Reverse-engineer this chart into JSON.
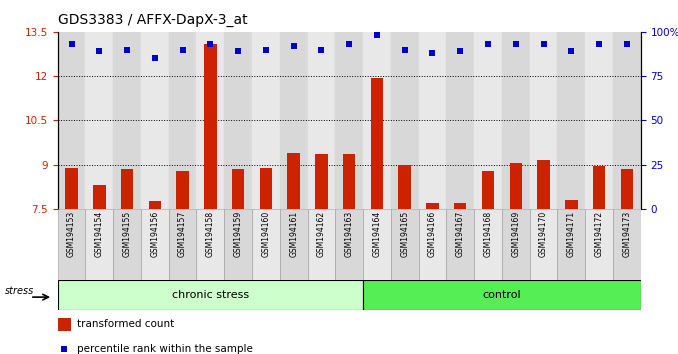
{
  "title": "GDS3383 / AFFX-DapX-3_at",
  "samples": [
    "GSM194153",
    "GSM194154",
    "GSM194155",
    "GSM194156",
    "GSM194157",
    "GSM194158",
    "GSM194159",
    "GSM194160",
    "GSM194161",
    "GSM194162",
    "GSM194163",
    "GSM194164",
    "GSM194165",
    "GSM194166",
    "GSM194167",
    "GSM194168",
    "GSM194169",
    "GSM194170",
    "GSM194171",
    "GSM194172",
    "GSM194173"
  ],
  "red_values": [
    8.9,
    8.3,
    8.85,
    7.75,
    8.8,
    13.1,
    8.85,
    8.9,
    9.4,
    9.35,
    9.35,
    11.95,
    9.0,
    7.7,
    7.7,
    8.8,
    9.05,
    9.15,
    7.8,
    8.95,
    8.85
  ],
  "blue_values": [
    93,
    89,
    90,
    85,
    90,
    93,
    89,
    90,
    92,
    90,
    93,
    98,
    90,
    88,
    89,
    93,
    93,
    93,
    89,
    93,
    93
  ],
  "chronic_stress_count": 11,
  "control_count": 10,
  "ylim_left": [
    7.5,
    13.5
  ],
  "ylim_right": [
    0,
    100
  ],
  "yticks_left": [
    7.5,
    9.0,
    10.5,
    12.0,
    13.5
  ],
  "yticks_right": [
    0,
    25,
    50,
    75,
    100
  ],
  "ytick_labels_left": [
    "7.5",
    "9",
    "10.5",
    "12",
    "13.5"
  ],
  "ytick_labels_right": [
    "0",
    "25",
    "50",
    "75",
    "100%"
  ],
  "grid_lines": [
    9.0,
    10.5,
    12.0
  ],
  "bar_color": "#cc2200",
  "dot_color": "#0000cc",
  "chronic_stress_bg": "#ccffcc",
  "control_bg": "#55ee55",
  "col_bg_even": "#d8d8d8",
  "col_bg_odd": "#e8e8e8",
  "legend_red_label": "transformed count",
  "legend_blue_label": "percentile rank within the sample",
  "stress_label": "stress",
  "chronic_stress_label": "chronic stress",
  "control_label": "control",
  "title_fontsize": 10,
  "tick_fontsize": 7.5,
  "label_fontsize": 7,
  "sample_fontsize": 5.5
}
